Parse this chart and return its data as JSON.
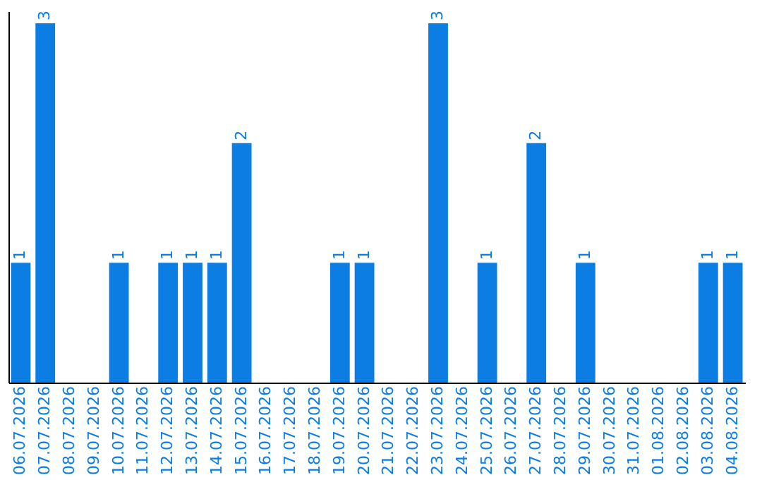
{
  "chart_data": {
    "type": "bar",
    "categories": [
      "06.07.2026",
      "07.07.2026",
      "08.07.2026",
      "09.07.2026",
      "10.07.2026",
      "11.07.2026",
      "12.07.2026",
      "13.07.2026",
      "14.07.2026",
      "15.07.2026",
      "16.07.2026",
      "17.07.2026",
      "18.07.2026",
      "19.07.2026",
      "20.07.2026",
      "21.07.2026",
      "22.07.2026",
      "23.07.2026",
      "24.07.2026",
      "25.07.2026",
      "26.07.2026",
      "27.07.2026",
      "28.07.2026",
      "29.07.2026",
      "30.07.2026",
      "31.07.2026",
      "01.08.2026",
      "02.08.2026",
      "03.08.2026",
      "04.08.2026"
    ],
    "values": [
      1,
      3,
      0,
      0,
      1,
      0,
      1,
      1,
      1,
      2,
      0,
      0,
      0,
      1,
      1,
      0,
      0,
      3,
      0,
      1,
      0,
      2,
      0,
      1,
      0,
      0,
      0,
      0,
      1,
      1
    ],
    "value_labels": [
      "1",
      "3",
      null,
      null,
      "1",
      null,
      "1",
      "1",
      "1",
      "2",
      null,
      null,
      null,
      "1",
      "1",
      null,
      null,
      "3",
      null,
      "1",
      null,
      "2",
      null,
      "1",
      null,
      null,
      null,
      null,
      "1",
      "1"
    ],
    "color": "#0b7de3",
    "ylim": [
      0,
      3.1
    ],
    "tick_labels": "x"
  }
}
